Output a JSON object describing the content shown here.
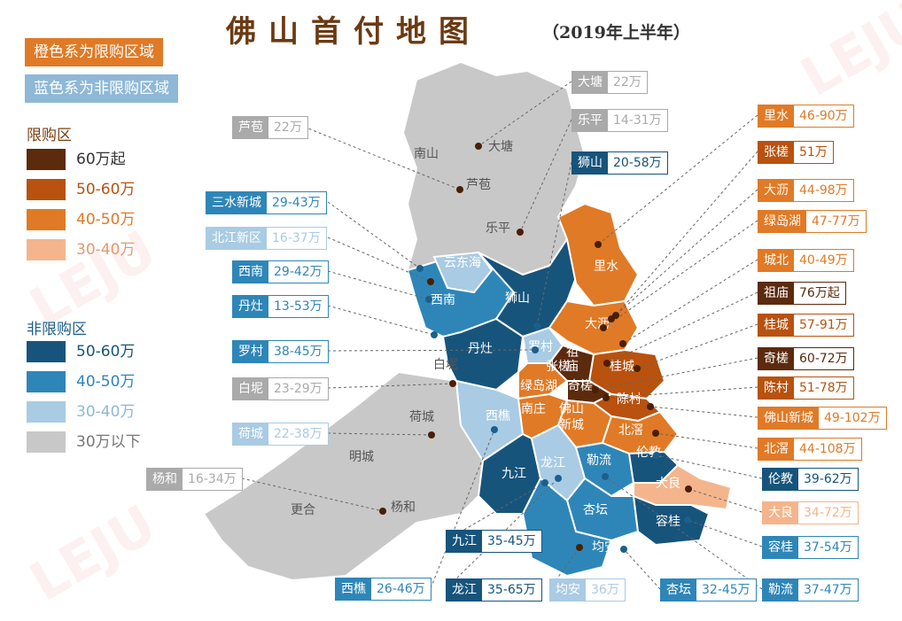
{
  "title": "佛山首付地图",
  "subtitle": "（2019年上半年）",
  "legend": {
    "banner_orange": "橙色系为限购区域",
    "banner_blue": "蓝色系为非限购区域",
    "restricted_heading": "限购区",
    "restricted": [
      {
        "label": "60万起",
        "color": "#5c2a0c"
      },
      {
        "label": "50-60万",
        "color": "#b8520e"
      },
      {
        "label": "40-50万",
        "color": "#e07a26"
      },
      {
        "label": "30-40万",
        "color": "#f4b58c"
      }
    ],
    "unrestricted_heading": "非限购区",
    "unrestricted": [
      {
        "label": "50-60万",
        "color": "#17547c"
      },
      {
        "label": "40-50万",
        "color": "#2e86b8"
      },
      {
        "label": "30-40万",
        "color": "#a9cbe3"
      },
      {
        "label": "30万以下",
        "color": "#c8c8c8"
      }
    ]
  },
  "map_labels": [
    "南山",
    "大塘",
    "芦苞",
    "乐平",
    "云东海",
    "狮山",
    "西南",
    "里水",
    "罗村",
    "大沥",
    "丹灶",
    "祖",
    "庙",
    "张槎",
    "桂城",
    "白坭",
    "绿岛湖",
    "奇槎",
    "陈村",
    "南庄",
    "佛山",
    "新城",
    "北滘",
    "荷城",
    "西樵",
    "伦教",
    "九江",
    "龙江",
    "勒流",
    "大良",
    "明城",
    "杏坛",
    "容桂",
    "更合",
    "杨和",
    "均安"
  ],
  "callouts": [
    {
      "name": "大塘",
      "value": "22万",
      "color": "#aaaaaa"
    },
    {
      "name": "芦苞",
      "value": "22万",
      "color": "#aaaaaa"
    },
    {
      "name": "乐平",
      "value": "14-31万",
      "color": "#aaaaaa"
    },
    {
      "name": "狮山",
      "value": "20-58万",
      "color": "#17547c"
    },
    {
      "name": "三水新城",
      "value": "29-43万",
      "color": "#2e86b8"
    },
    {
      "name": "北江新区",
      "value": "16-37万",
      "color": "#a9cbe3"
    },
    {
      "name": "西南",
      "value": "29-42万",
      "color": "#2e86b8"
    },
    {
      "name": "丹灶",
      "value": "13-53万",
      "color": "#2e86b8"
    },
    {
      "name": "罗村",
      "value": "38-45万",
      "color": "#2e86b8"
    },
    {
      "name": "白坭",
      "value": "23-29万",
      "color": "#aaaaaa"
    },
    {
      "name": "荷城",
      "value": "22-38万",
      "color": "#a9cbe3"
    },
    {
      "name": "杨和",
      "value": "16-34万",
      "color": "#aaaaaa"
    },
    {
      "name": "西樵",
      "value": "26-46万",
      "color": "#2e86b8"
    },
    {
      "name": "九江",
      "value": "35-45万",
      "color": "#17547c"
    },
    {
      "name": "龙江",
      "value": "35-65万",
      "color": "#17547c"
    },
    {
      "name": "均安",
      "value": "36万",
      "color": "#a9cbe3"
    },
    {
      "name": "杏坛",
      "value": "32-45万",
      "color": "#2e86b8"
    },
    {
      "name": "勒流",
      "value": "37-47万",
      "color": "#2e86b8"
    },
    {
      "name": "容桂",
      "value": "37-54万",
      "color": "#2e86b8"
    },
    {
      "name": "大良",
      "value": "34-72万",
      "color": "#f4b58c"
    },
    {
      "name": "伦教",
      "value": "39-62万",
      "color": "#17547c"
    },
    {
      "name": "北滘",
      "value": "44-108万",
      "color": "#e07a26"
    },
    {
      "name": "佛山新城",
      "value": "49-102万",
      "color": "#e07a26"
    },
    {
      "name": "陈村",
      "value": "51-78万",
      "color": "#b8520e"
    },
    {
      "name": "奇槎",
      "value": "60-72万",
      "color": "#5c2a0c"
    },
    {
      "name": "桂城",
      "value": "57-91万",
      "color": "#b8520e"
    },
    {
      "name": "祖庙",
      "value": "76万起",
      "color": "#5c2a0c"
    },
    {
      "name": "城北",
      "value": "40-49万",
      "color": "#e07a26"
    },
    {
      "name": "绿岛湖",
      "value": "47-77万",
      "color": "#e07a26"
    },
    {
      "name": "大沥",
      "value": "44-98万",
      "color": "#e07a26"
    },
    {
      "name": "张槎",
      "value": "51万",
      "color": "#b8520e"
    },
    {
      "name": "里水",
      "value": "46-90万",
      "color": "#e07a26"
    }
  ]
}
